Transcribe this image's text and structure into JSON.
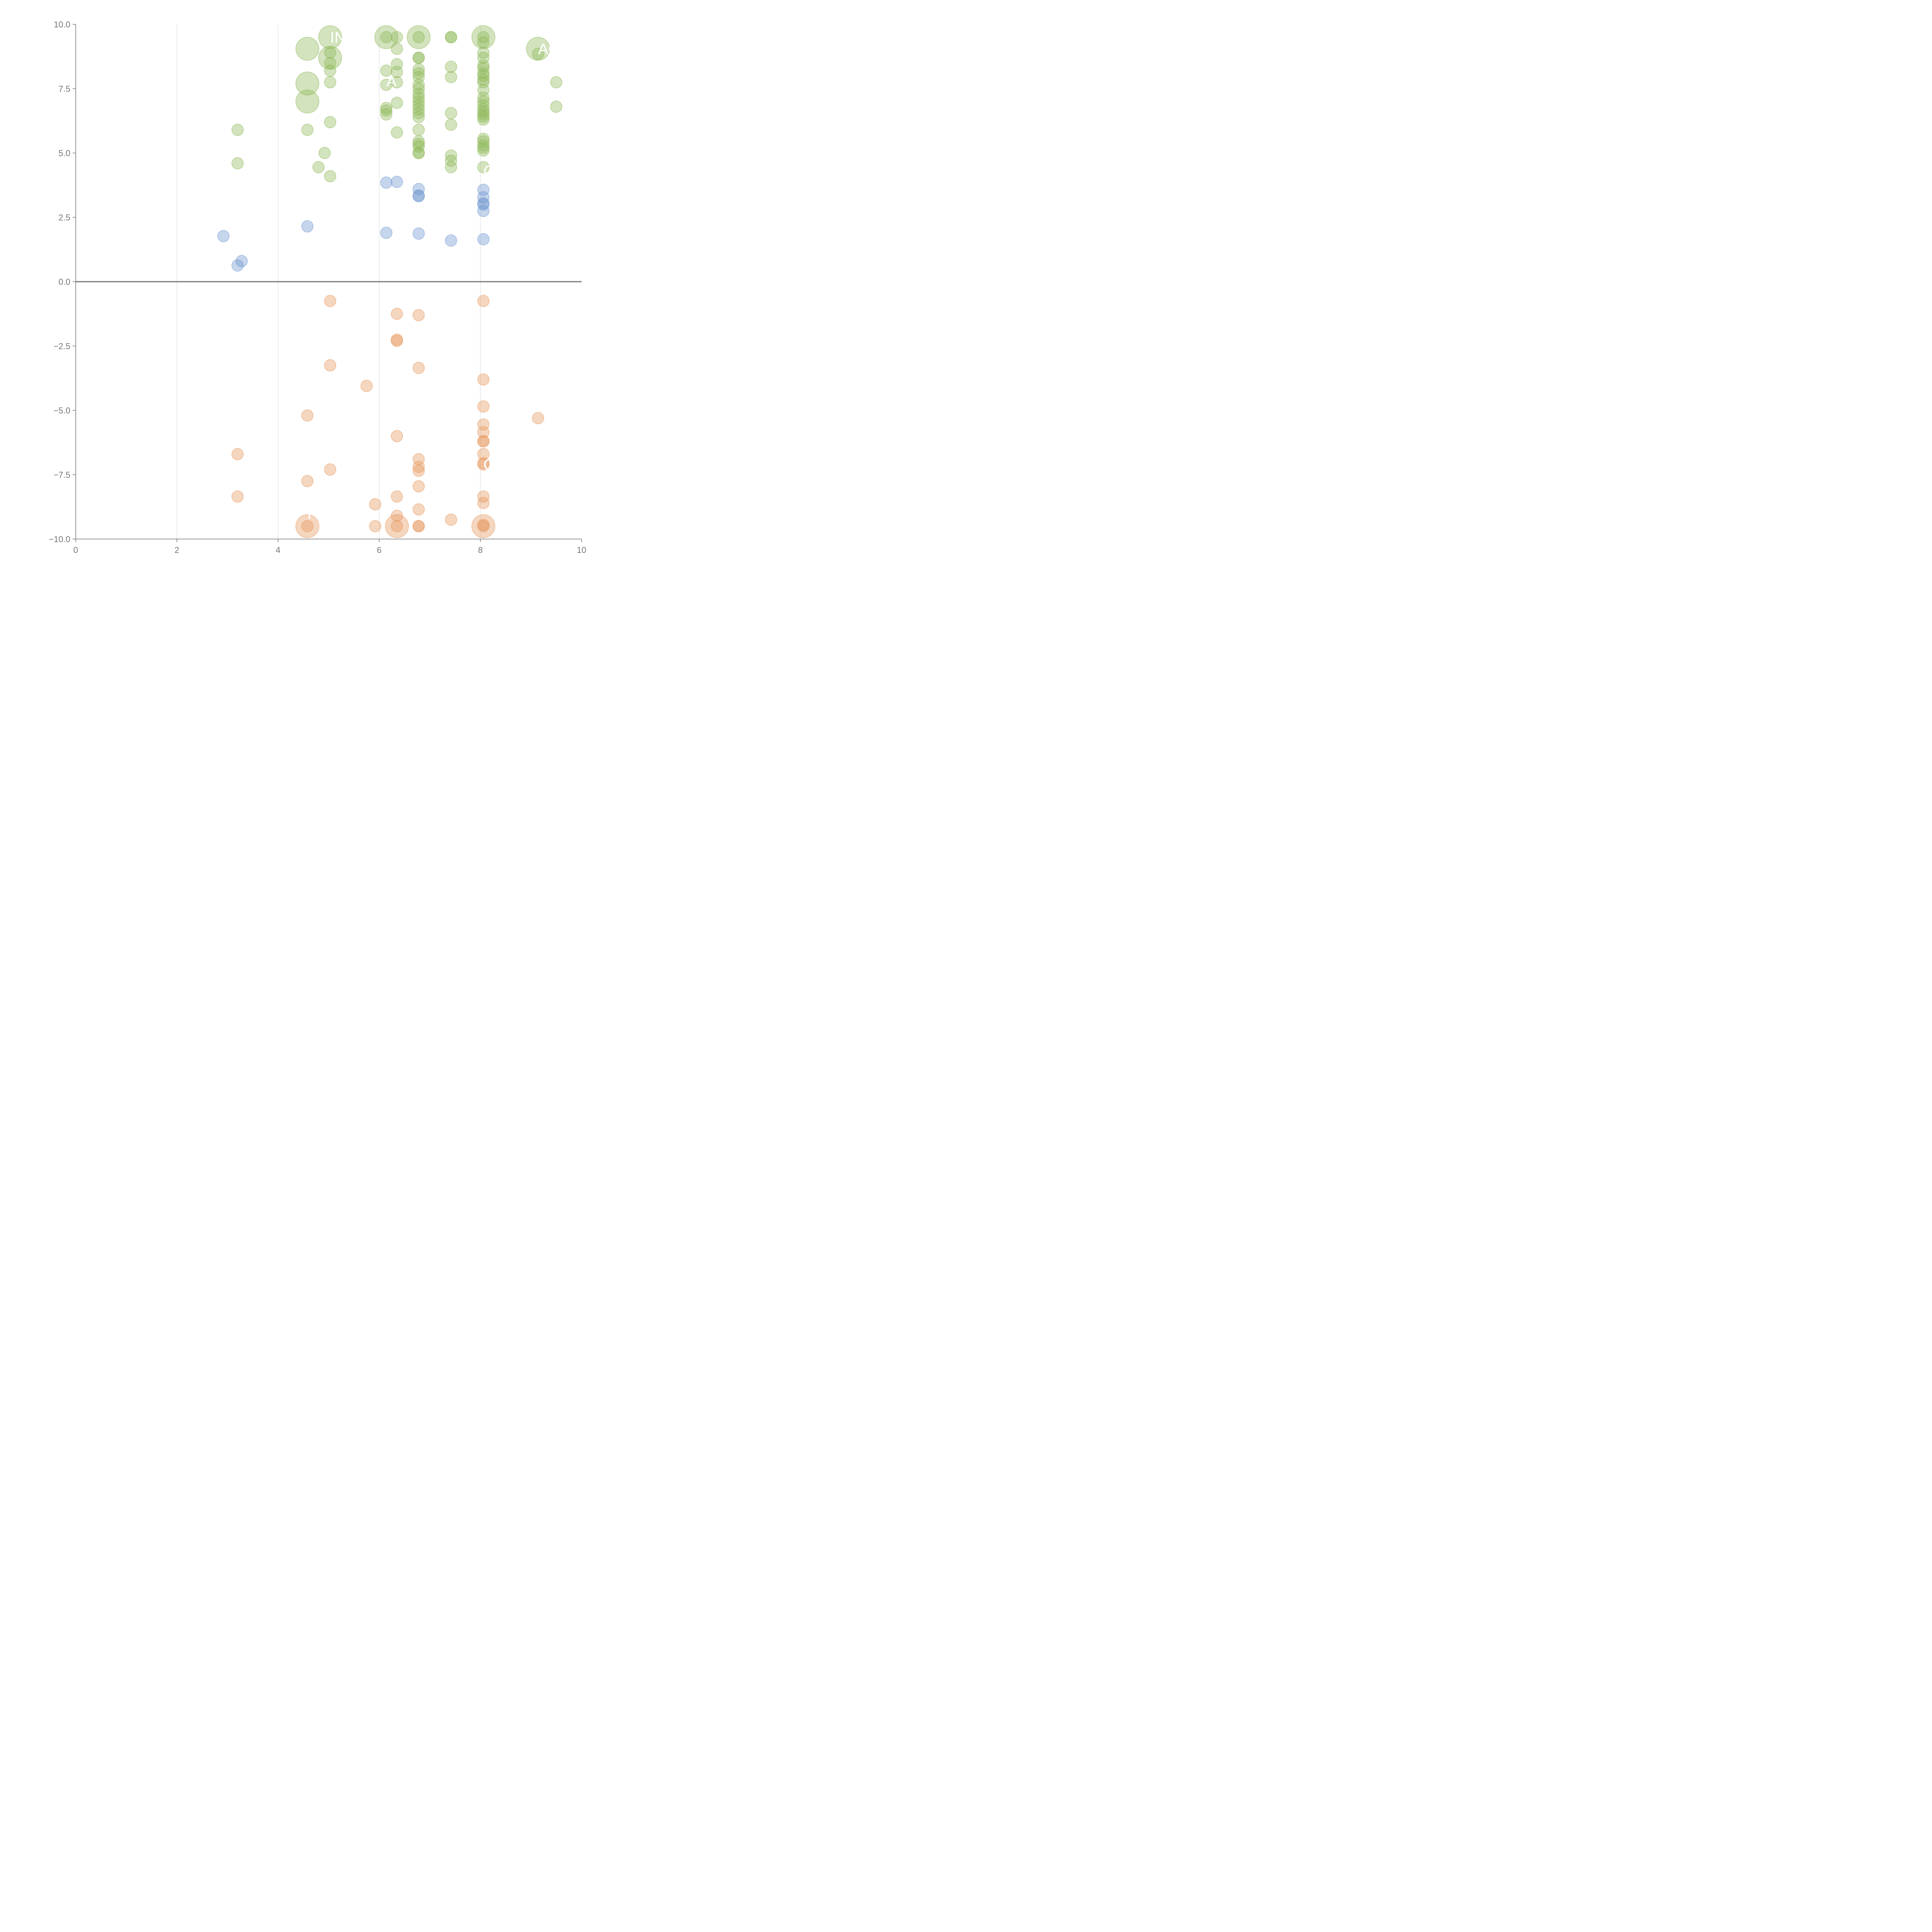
{
  "chart_data": {
    "type": "scatter",
    "title": "",
    "xlabel": "",
    "ylabel": "",
    "xlim": [
      0,
      10
    ],
    "ylim": [
      -10,
      10
    ],
    "x_ticks": [
      "0",
      "2",
      "4",
      "6",
      "8",
      "10"
    ],
    "y_ticks": [
      "10.0",
      "7.5",
      "5.0",
      "2.5",
      "0.0",
      "−2.5",
      "−5.0",
      "−7.5",
      "−10.0"
    ],
    "grid": "vertical lines at x ticks",
    "zero_line": true,
    "series": [
      {
        "color": "#8fb85a",
        "points": [
          [
            5.03,
            9.5,
            2
          ],
          [
            6.14,
            9.5,
            2
          ],
          [
            6.14,
            9.5,
            0
          ],
          [
            6.35,
            9.5,
            0
          ],
          [
            6.78,
            9.5,
            2
          ],
          [
            6.78,
            9.5,
            0
          ],
          [
            7.42,
            9.5,
            0
          ],
          [
            7.42,
            9.5,
            0
          ],
          [
            8.06,
            9.5,
            2
          ],
          [
            8.06,
            9.5,
            0
          ],
          [
            8.06,
            9.3,
            0
          ],
          [
            4.58,
            9.05,
            2
          ],
          [
            6.35,
            9.05,
            0
          ],
          [
            9.14,
            9.05,
            2
          ],
          [
            9.14,
            8.85,
            0
          ],
          [
            5.03,
            8.7,
            2
          ],
          [
            5.03,
            8.9,
            0
          ],
          [
            5.03,
            8.5,
            0
          ],
          [
            5.03,
            8.2,
            0
          ],
          [
            6.78,
            8.7,
            0
          ],
          [
            6.78,
            8.7,
            0
          ],
          [
            6.35,
            8.45,
            0
          ],
          [
            6.35,
            8.15,
            0
          ],
          [
            6.14,
            8.2,
            0
          ],
          [
            7.42,
            8.35,
            0
          ],
          [
            6.78,
            8.25,
            0
          ],
          [
            6.78,
            8.1,
            0
          ],
          [
            8.06,
            8.9,
            0
          ],
          [
            8.06,
            8.7,
            0
          ],
          [
            8.06,
            8.4,
            0
          ],
          [
            8.06,
            8.3,
            0
          ],
          [
            8.06,
            8.1,
            0
          ],
          [
            8.06,
            8.0,
            0
          ],
          [
            7.42,
            7.95,
            0
          ],
          [
            6.78,
            7.95,
            0
          ],
          [
            8.06,
            7.85,
            0
          ],
          [
            8.06,
            7.75,
            0
          ],
          [
            9.5,
            7.75,
            0
          ],
          [
            4.58,
            7.7,
            2
          ],
          [
            5.03,
            7.75,
            0
          ],
          [
            6.14,
            7.65,
            0
          ],
          [
            6.35,
            7.75,
            0
          ],
          [
            6.78,
            7.65,
            0
          ],
          [
            6.78,
            7.5,
            0
          ],
          [
            6.78,
            7.3,
            0
          ],
          [
            6.78,
            7.15,
            0
          ],
          [
            6.78,
            7.0,
            0
          ],
          [
            6.78,
            6.85,
            0
          ],
          [
            6.78,
            6.7,
            0
          ],
          [
            6.78,
            6.55,
            0
          ],
          [
            6.78,
            6.4,
            0
          ],
          [
            8.06,
            7.45,
            0
          ],
          [
            8.06,
            7.15,
            0
          ],
          [
            8.06,
            7.0,
            0
          ],
          [
            8.06,
            6.85,
            0
          ],
          [
            8.06,
            6.7,
            0
          ],
          [
            8.06,
            6.6,
            0
          ],
          [
            8.06,
            6.5,
            0
          ],
          [
            8.06,
            6.4,
            0
          ],
          [
            8.06,
            6.3,
            0
          ],
          [
            4.58,
            7.0,
            2
          ],
          [
            6.35,
            6.95,
            0
          ],
          [
            6.14,
            6.75,
            0
          ],
          [
            6.14,
            6.65,
            0
          ],
          [
            6.14,
            6.5,
            0
          ],
          [
            9.5,
            6.8,
            0
          ],
          [
            7.42,
            6.55,
            0
          ],
          [
            5.03,
            6.2,
            0
          ],
          [
            7.42,
            6.1,
            0
          ],
          [
            3.2,
            5.9,
            0
          ],
          [
            4.58,
            5.9,
            0
          ],
          [
            6.78,
            5.9,
            0
          ],
          [
            6.35,
            5.8,
            0
          ],
          [
            8.06,
            5.55,
            0
          ],
          [
            8.06,
            5.45,
            0
          ],
          [
            8.06,
            5.3,
            0
          ],
          [
            8.06,
            5.2,
            0
          ],
          [
            8.06,
            5.1,
            0
          ],
          [
            6.78,
            5.45,
            0
          ],
          [
            6.78,
            5.35,
            0
          ],
          [
            6.78,
            5.25,
            0
          ],
          [
            4.92,
            5.0,
            0
          ],
          [
            6.78,
            5.0,
            0
          ],
          [
            6.78,
            5.0,
            0
          ],
          [
            7.42,
            4.9,
            0
          ],
          [
            7.42,
            4.7,
            0
          ],
          [
            7.42,
            4.45,
            0
          ],
          [
            3.2,
            4.6,
            0
          ],
          [
            4.8,
            4.45,
            0
          ],
          [
            8.06,
            4.45,
            0
          ],
          [
            5.03,
            4.1,
            0
          ]
        ]
      },
      {
        "color": "#6f97cf",
        "points": [
          [
            6.14,
            3.85,
            0
          ],
          [
            6.35,
            3.88,
            0
          ],
          [
            6.78,
            3.6,
            0
          ],
          [
            6.78,
            3.35,
            0
          ],
          [
            6.78,
            3.32,
            0
          ],
          [
            8.06,
            3.57,
            0
          ],
          [
            8.06,
            3.28,
            0
          ],
          [
            8.06,
            3.05,
            0
          ],
          [
            8.06,
            3.0,
            0
          ],
          [
            8.06,
            2.75,
            0
          ],
          [
            4.58,
            2.15,
            0
          ],
          [
            6.14,
            1.9,
            0
          ],
          [
            6.78,
            1.87,
            0
          ],
          [
            7.42,
            1.6,
            0
          ],
          [
            8.06,
            1.65,
            0
          ],
          [
            2.92,
            1.77,
            0
          ],
          [
            3.28,
            0.8,
            0
          ],
          [
            3.2,
            0.63,
            0
          ]
        ]
      },
      {
        "color": "#e5995e",
        "points": [
          [
            5.03,
            -0.75,
            0
          ],
          [
            8.06,
            -0.75,
            0
          ],
          [
            6.35,
            -1.25,
            0
          ],
          [
            6.78,
            -1.3,
            0
          ],
          [
            6.35,
            -2.25,
            0
          ],
          [
            6.35,
            -2.3,
            0
          ],
          [
            5.03,
            -3.25,
            0
          ],
          [
            6.78,
            -3.35,
            0
          ],
          [
            8.06,
            -3.8,
            0
          ],
          [
            5.75,
            -4.05,
            0
          ],
          [
            8.06,
            -4.85,
            0
          ],
          [
            4.58,
            -5.2,
            0
          ],
          [
            9.14,
            -5.3,
            0
          ],
          [
            8.06,
            -5.55,
            0
          ],
          [
            8.06,
            -5.85,
            0
          ],
          [
            6.35,
            -6.0,
            0
          ],
          [
            8.06,
            -6.2,
            0
          ],
          [
            8.06,
            -6.2,
            0
          ],
          [
            3.2,
            -6.7,
            0
          ],
          [
            8.06,
            -6.7,
            0
          ],
          [
            6.78,
            -6.9,
            0
          ],
          [
            8.06,
            -7.05,
            0
          ],
          [
            8.06,
            -7.1,
            0
          ],
          [
            6.78,
            -7.2,
            0
          ],
          [
            5.03,
            -7.3,
            0
          ],
          [
            6.78,
            -7.35,
            0
          ],
          [
            4.58,
            -7.75,
            0
          ],
          [
            6.78,
            -7.95,
            0
          ],
          [
            3.2,
            -8.35,
            0
          ],
          [
            6.35,
            -8.35,
            0
          ],
          [
            8.06,
            -8.35,
            0
          ],
          [
            8.06,
            -8.6,
            0
          ],
          [
            5.92,
            -8.65,
            0
          ],
          [
            6.78,
            -8.85,
            0
          ],
          [
            6.35,
            -9.1,
            0
          ],
          [
            7.42,
            -9.25,
            0
          ],
          [
            4.58,
            -9.5,
            2
          ],
          [
            4.58,
            -9.5,
            0
          ],
          [
            5.92,
            -9.5,
            0
          ],
          [
            6.35,
            -9.5,
            2
          ],
          [
            6.35,
            -9.5,
            0
          ],
          [
            6.78,
            -9.5,
            0
          ],
          [
            6.78,
            -9.5,
            0
          ],
          [
            8.06,
            -9.5,
            2
          ],
          [
            8.06,
            -9.5,
            0
          ],
          [
            8.06,
            -9.45,
            0
          ]
        ]
      }
    ],
    "annotations": [
      {
        "text": "IN",
        "x": 5.03,
        "y": 9.5
      },
      {
        "text": "A",
        "x": 6.14,
        "y": 7.8
      },
      {
        "text": "ACA",
        "x": 9.14,
        "y": 9.05
      },
      {
        "text": "C",
        "x": 8.06,
        "y": 4.3
      },
      {
        "text": "C",
        "x": 8.06,
        "y": -7.1
      },
      {
        "text": "P",
        "x": 4.58,
        "y": -9.0
      }
    ]
  }
}
